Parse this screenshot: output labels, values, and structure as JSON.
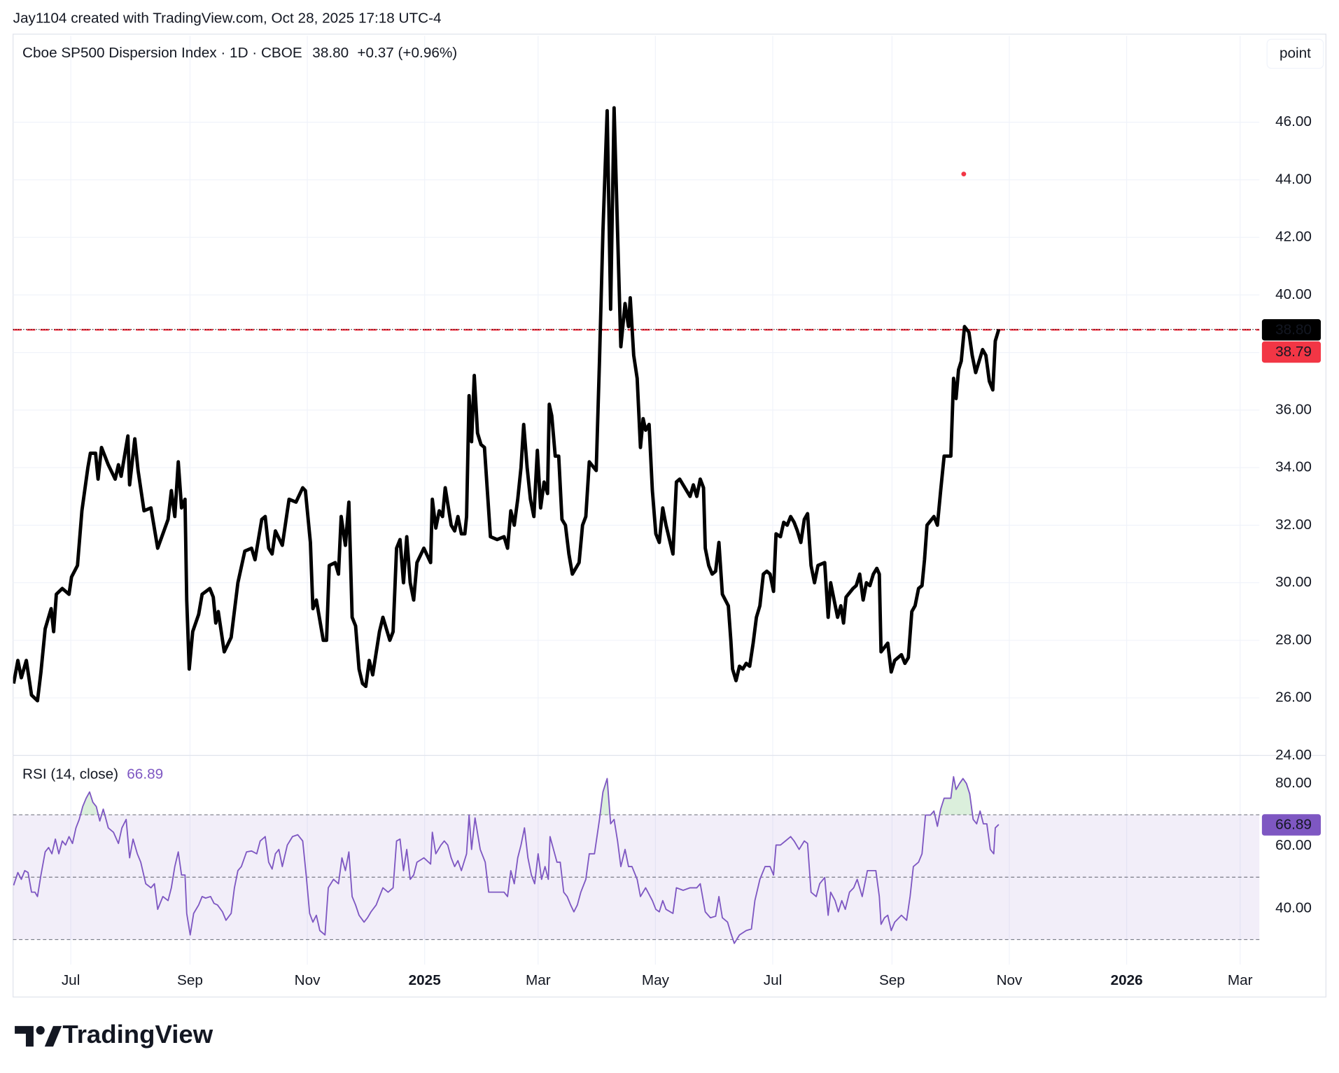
{
  "header": {
    "attribution": "Jay1104 created with TradingView.com, Oct 28, 2025 17:18 UTC-4",
    "logo": "TradingView"
  },
  "chart_data": [
    {
      "type": "line",
      "title": "Cboe SP500 Dispersion Index · 1D · CBOE",
      "change_label": "+0.37 (+0.96%)",
      "scale_button": "point",
      "color": "#000000",
      "last_value": {
        "value": 38.8,
        "label": "38.80"
      },
      "ref_line": {
        "value": 38.79,
        "label": "38.79",
        "color": "#f23645"
      },
      "marker": {
        "x": 464.3,
        "value": 44.2,
        "color": "#f23645"
      },
      "xlim": [
        -30,
        618
      ],
      "xticks": [
        {
          "value": 0,
          "label": "Jul"
        },
        {
          "value": 62,
          "label": "Sep"
        },
        {
          "value": 123,
          "label": "Nov"
        },
        {
          "value": 184,
          "label": "2025"
        },
        {
          "value": 243,
          "label": "Mar"
        },
        {
          "value": 304,
          "label": "May"
        },
        {
          "value": 365,
          "label": "Jul"
        },
        {
          "value": 427,
          "label": "Sep"
        },
        {
          "value": 488,
          "label": "Nov"
        },
        {
          "value": 549,
          "label": "2026"
        },
        {
          "value": 608,
          "label": "Mar"
        }
      ],
      "ylim": [
        24,
        49
      ],
      "yticks": [
        {
          "value": 24,
          "label": "24.00"
        },
        {
          "value": 26,
          "label": "26.00"
        },
        {
          "value": 28,
          "label": "28.00"
        },
        {
          "value": 30,
          "label": "30.00"
        },
        {
          "value": 32,
          "label": "32.00"
        },
        {
          "value": 34,
          "label": "34.00"
        },
        {
          "value": 36,
          "label": "36.00"
        },
        {
          "value": 38,
          "label": "38.00"
        },
        {
          "value": 40,
          "label": "40.00"
        },
        {
          "value": 42,
          "label": "42.00"
        },
        {
          "value": 44,
          "label": "44.00"
        },
        {
          "value": 46,
          "label": "46.00"
        }
      ],
      "grid": true,
      "x": [
        -29.7,
        -27.5,
        -25.7,
        -23.1,
        -20.4,
        -17.3,
        -15.5,
        -13.3,
        -10.2,
        -8.9,
        -7.5,
        -4.4,
        -0.9,
        0.4,
        3.5,
        5.8,
        8.9,
        10.2,
        12.9,
        14.2,
        16.0,
        19.5,
        23.1,
        24.8,
        26.2,
        29.7,
        30.6,
        33.3,
        35.0,
        38.1,
        41.7,
        45.2,
        50.6,
        52.3,
        54.1,
        55.9,
        57.6,
        59.4,
        60.3,
        61.6,
        63.4,
        66.5,
        68.3,
        72.3,
        74.1,
        75.4,
        76.7,
        79.8,
        83.4,
        86.9,
        90.5,
        94.0,
        95.8,
        99.3,
        101.1,
        102.9,
        104.7,
        106.4,
        110.0,
        113.5,
        117.1,
        120.6,
        122.0,
        124.6,
        125.9,
        127.7,
        131.3,
        133.0,
        134.4,
        137.5,
        139.2,
        140.6,
        142.8,
        144.6,
        146.3,
        148.1,
        149.9,
        151.7,
        153.4,
        155.2,
        157.0,
        160.5,
        162.3,
        165.9,
        167.6,
        169.4,
        171.2,
        173.0,
        174.7,
        176.5,
        178.3,
        180.0,
        183.6,
        187.1,
        188.0,
        189.8,
        191.6,
        193.3,
        194.7,
        197.8,
        199.6,
        201.3,
        203.1,
        204.9,
        205.8,
        207.1,
        208.4,
        209.8,
        211.5,
        213.3,
        215.1,
        216.9,
        218.2,
        221.7,
        225.3,
        227.1,
        228.8,
        230.6,
        232.4,
        234.1,
        235.5,
        237.3,
        239.0,
        240.8,
        242.6,
        244.3,
        246.1,
        247.9,
        248.8,
        250.1,
        251.9,
        253.7,
        255.4,
        257.2,
        259.0,
        260.8,
        264.3,
        266.1,
        267.8,
        269.6,
        273.2,
        274.9,
        276.7,
        278.9,
        280.7,
        282.5,
        284.3,
        286.0,
        288.2,
        290.0,
        290.9,
        292.7,
        294.5,
        296.2,
        297.6,
        298.9,
        300.7,
        302.4,
        304.2,
        306.0,
        307.8,
        309.5,
        311.3,
        313.1,
        314.9,
        316.6,
        320.2,
        322.0,
        323.7,
        325.5,
        327.3,
        329.0,
        329.9,
        331.7,
        333.5,
        335.3,
        337.0,
        338.8,
        341.9,
        343.2,
        344.1,
        345.9,
        347.7,
        349.4,
        351.2,
        353.0,
        354.8,
        356.5,
        358.3,
        360.1,
        361.9,
        363.6,
        365.4,
        366.7,
        369.0,
        370.7,
        372.5,
        374.3,
        376.1,
        377.8,
        379.6,
        381.4,
        383.1,
        384.9,
        386.7,
        388.5,
        392.0,
        393.8,
        395.1,
        396.9,
        398.7,
        400.4,
        401.8,
        403.1,
        406.7,
        408.4,
        410.2,
        412.0,
        413.7,
        415.5,
        417.3,
        419.1,
        420.4,
        421.3,
        424.8,
        426.6,
        428.4,
        431.9,
        433.7,
        435.5,
        437.3,
        439.0,
        440.8,
        442.6,
        443.9,
        445.2,
        448.8,
        450.6,
        452.3,
        454.1,
        457.6,
        459.0,
        460.3,
        461.6,
        463.0,
        464.7,
        467.0,
        468.7,
        470.5,
        472.3,
        474.1,
        475.8,
        477.6,
        479.4,
        480.7,
        482.5
      ],
      "values": [
        26.5,
        27.3,
        26.7,
        27.3,
        26.1,
        25.9,
        26.9,
        28.4,
        29.1,
        28.3,
        29.6,
        29.8,
        29.6,
        30.2,
        30.6,
        32.5,
        34.0,
        34.5,
        34.5,
        33.6,
        34.7,
        34.1,
        33.6,
        34.1,
        33.7,
        35.1,
        33.4,
        35.0,
        33.9,
        32.5,
        32.6,
        31.2,
        32.2,
        33.2,
        32.3,
        34.2,
        32.6,
        32.9,
        29.4,
        27.0,
        28.3,
        28.9,
        29.6,
        29.8,
        29.5,
        28.6,
        29.0,
        27.6,
        28.1,
        30.0,
        31.1,
        31.2,
        30.8,
        32.2,
        32.3,
        31.2,
        31.0,
        31.8,
        31.3,
        32.9,
        32.8,
        33.3,
        33.2,
        31.4,
        29.1,
        29.4,
        28.0,
        28.0,
        30.6,
        30.7,
        30.3,
        32.3,
        31.3,
        32.8,
        28.8,
        28.5,
        27.0,
        26.5,
        26.4,
        27.3,
        26.8,
        28.3,
        28.8,
        28.0,
        28.3,
        31.2,
        31.5,
        30.0,
        31.6,
        30.0,
        29.4,
        30.7,
        31.2,
        30.7,
        32.9,
        31.9,
        32.5,
        32.3,
        33.3,
        32.0,
        31.8,
        32.3,
        31.7,
        31.7,
        32.3,
        36.5,
        34.9,
        37.2,
        35.2,
        34.8,
        34.7,
        32.9,
        31.6,
        31.5,
        31.6,
        31.2,
        32.5,
        32.0,
        32.9,
        34.0,
        35.5,
        34.0,
        32.9,
        32.3,
        34.6,
        32.6,
        33.5,
        33.1,
        36.2,
        35.8,
        34.4,
        34.4,
        32.2,
        32.0,
        31.0,
        30.3,
        30.7,
        32.0,
        32.3,
        34.2,
        33.9,
        37.7,
        42.2,
        46.4,
        39.5,
        46.5,
        42.2,
        38.2,
        39.7,
        38.9,
        39.9,
        37.9,
        37.1,
        34.7,
        35.7,
        35.3,
        35.5,
        33.2,
        31.7,
        31.4,
        32.6,
        32.0,
        31.5,
        31.0,
        33.5,
        33.6,
        33.2,
        33.0,
        33.4,
        33.0,
        33.6,
        33.3,
        31.2,
        30.6,
        30.3,
        30.4,
        31.4,
        29.6,
        29.2,
        28.0,
        27.0,
        26.6,
        27.1,
        27.0,
        27.2,
        27.1,
        27.9,
        28.8,
        29.2,
        30.3,
        30.4,
        30.3,
        29.7,
        31.7,
        31.6,
        32.1,
        32.0,
        32.3,
        32.1,
        31.8,
        31.4,
        32.2,
        32.4,
        30.6,
        30.0,
        30.6,
        30.7,
        28.8,
        30.0,
        29.4,
        28.8,
        29.2,
        28.6,
        29.5,
        29.8,
        29.9,
        30.3,
        29.4,
        30.0,
        29.9,
        30.3,
        30.5,
        30.3,
        27.6,
        27.9,
        26.9,
        27.3,
        27.5,
        27.2,
        27.4,
        29.0,
        29.2,
        29.8,
        29.9,
        30.8,
        32.0,
        32.3,
        32.0,
        33.2,
        34.4,
        34.4,
        37.1,
        36.4,
        37.4,
        37.7,
        38.9,
        38.7,
        37.9,
        37.3,
        37.7,
        38.1,
        37.9,
        37.0,
        36.7,
        38.4,
        38.8
      ]
    },
    {
      "type": "line",
      "title": "RSI (14, close)",
      "color": "#7e57c2",
      "last_value": {
        "value": 66.89,
        "label": "66.89"
      },
      "bands": [
        30,
        50,
        70
      ],
      "band_color": "#7e57c2",
      "overbought_color": "#4caf50",
      "ylim": [
        22,
        89
      ],
      "yticks": [
        {
          "value": 40,
          "label": "40.00"
        },
        {
          "value": 60,
          "label": "60.00"
        },
        {
          "value": 80,
          "label": "80.00"
        }
      ],
      "x": [
        -29.7,
        -27.5,
        -25.7,
        -23.9,
        -22.2,
        -20.4,
        -18.6,
        -17.3,
        -15.5,
        -13.3,
        -11.5,
        -9.8,
        -8.0,
        -6.2,
        -4.4,
        -2.7,
        -0.9,
        0.9,
        2.7,
        4.4,
        6.2,
        8.0,
        9.8,
        11.5,
        13.3,
        15.1,
        16.9,
        19.5,
        22.2,
        24.8,
        26.6,
        28.8,
        30.6,
        32.4,
        34.6,
        36.4,
        39.0,
        41.7,
        43.5,
        45.2,
        47.9,
        50.6,
        52.3,
        54.1,
        55.9,
        57.6,
        59.4,
        60.3,
        62.1,
        63.9,
        66.5,
        68.3,
        70.1,
        72.7,
        74.5,
        76.3,
        78.9,
        80.7,
        83.4,
        85.1,
        86.9,
        88.7,
        91.4,
        94.0,
        96.7,
        98.5,
        101.1,
        102.9,
        104.7,
        106.4,
        108.2,
        110.0,
        112.6,
        115.3,
        118.0,
        120.6,
        122.4,
        124.2,
        125.9,
        127.7,
        129.5,
        132.2,
        133.9,
        136.6,
        139.2,
        141.0,
        142.8,
        144.6,
        146.3,
        148.1,
        149.9,
        152.5,
        154.3,
        156.1,
        158.8,
        160.5,
        162.3,
        165.0,
        167.6,
        169.4,
        171.2,
        173.0,
        174.7,
        176.5,
        178.3,
        180.0,
        183.6,
        187.1,
        188.0,
        189.8,
        192.5,
        194.2,
        196.0,
        197.8,
        199.6,
        201.3,
        203.1,
        205.8,
        207.1,
        208.4,
        210.2,
        212.9,
        215.5,
        217.3,
        220.8,
        225.3,
        227.1,
        228.8,
        230.6,
        232.4,
        234.1,
        235.9,
        237.7,
        239.5,
        241.2,
        243.0,
        244.8,
        246.6,
        248.3,
        249.2,
        251.0,
        252.8,
        254.5,
        256.3,
        258.1,
        259.9,
        261.6,
        263.4,
        265.2,
        267.8,
        269.6,
        272.3,
        274.9,
        276.7,
        278.9,
        280.7,
        282.5,
        284.3,
        286.0,
        288.2,
        290.0,
        291.8,
        294.5,
        296.2,
        298.9,
        302.4,
        304.2,
        306.0,
        307.8,
        309.5,
        313.1,
        314.9,
        318.4,
        322.0,
        325.5,
        327.3,
        329.9,
        332.6,
        335.3,
        337.0,
        338.8,
        341.5,
        343.2,
        345.0,
        347.7,
        351.2,
        353.9,
        355.7,
        358.3,
        361.0,
        363.6,
        365.4,
        366.7,
        369.0,
        371.6,
        374.3,
        376.1,
        378.7,
        381.4,
        383.1,
        384.9,
        387.6,
        389.4,
        392.0,
        393.8,
        395.1,
        397.4,
        399.1,
        400.9,
        402.7,
        404.9,
        407.1,
        408.9,
        411.5,
        414.2,
        416.9,
        418.6,
        420.4,
        421.3,
        423.1,
        424.8,
        426.6,
        428.4,
        431.9,
        434.6,
        436.4,
        438.1,
        440.8,
        442.6,
        444.4,
        447.0,
        448.8,
        450.6,
        452.3,
        454.1,
        457.6,
        459.0,
        460.3,
        462.1,
        463.9,
        465.7,
        467.4,
        469.2,
        471.0,
        472.8,
        474.5,
        476.3,
        478.1,
        479.9,
        480.7,
        482.5
      ],
      "values": [
        47.4,
        51.5,
        49.3,
        52.1,
        51.5,
        45.2,
        45.2,
        43.8,
        50.7,
        58.1,
        59.5,
        57.5,
        62.2,
        57.5,
        61.6,
        60.3,
        63.0,
        60.8,
        65.8,
        68.5,
        72.6,
        75.3,
        77.3,
        74.0,
        72.6,
        68.0,
        71.8,
        65.8,
        64.4,
        60.8,
        65.8,
        68.5,
        56.2,
        62.2,
        57.5,
        54.8,
        47.9,
        46.6,
        47.9,
        39.7,
        43.8,
        42.5,
        46.6,
        53.4,
        58.1,
        50.7,
        50.7,
        38.4,
        31.5,
        38.4,
        41.1,
        43.8,
        43.3,
        43.8,
        41.6,
        41.1,
        38.9,
        36.2,
        38.4,
        46.6,
        52.1,
        53.4,
        58.1,
        58.4,
        57.5,
        61.6,
        63.0,
        54.8,
        52.6,
        57.5,
        58.9,
        53.4,
        60.3,
        63.0,
        63.6,
        61.6,
        50.7,
        38.4,
        35.6,
        37.8,
        32.9,
        31.5,
        46.6,
        49.3,
        47.9,
        56.2,
        52.1,
        58.1,
        43.8,
        41.1,
        37.8,
        35.6,
        37.0,
        38.9,
        41.1,
        43.8,
        46.6,
        45.2,
        46.6,
        61.6,
        62.2,
        52.1,
        58.9,
        49.3,
        50.7,
        54.8,
        56.2,
        54.2,
        64.4,
        57.5,
        60.3,
        61.6,
        60.3,
        56.2,
        53.4,
        55.3,
        52.1,
        57.5,
        69.9,
        58.9,
        69.0,
        58.9,
        54.8,
        45.2,
        45.2,
        45.2,
        43.8,
        52.1,
        47.9,
        56.2,
        60.3,
        65.8,
        56.2,
        50.7,
        47.9,
        57.5,
        49.3,
        53.4,
        49.3,
        63.0,
        58.9,
        54.8,
        54.8,
        45.2,
        43.8,
        41.1,
        38.9,
        41.1,
        45.2,
        49.3,
        57.5,
        57.5,
        68.5,
        77.3,
        81.6,
        67.1,
        68.5,
        61.6,
        53.4,
        58.9,
        53.4,
        53.4,
        49.3,
        43.8,
        46.6,
        42.5,
        39.7,
        38.9,
        42.5,
        39.7,
        38.4,
        46.6,
        45.8,
        46.6,
        46.6,
        47.9,
        38.9,
        37.0,
        37.5,
        43.8,
        37.0,
        35.6,
        32.1,
        28.8,
        31.5,
        32.9,
        33.4,
        42.5,
        49.3,
        53.4,
        53.4,
        50.7,
        60.3,
        60.3,
        61.6,
        63.0,
        61.6,
        58.9,
        61.6,
        60.8,
        45.2,
        43.8,
        47.9,
        49.9,
        37.8,
        45.2,
        42.5,
        38.9,
        42.5,
        39.7,
        45.2,
        46.6,
        49.3,
        43.8,
        52.1,
        52.1,
        52.1,
        43.8,
        34.9,
        37.0,
        37.8,
        32.9,
        35.6,
        37.8,
        36.2,
        43.8,
        53.4,
        54.8,
        57.5,
        69.9,
        69.9,
        71.2,
        66.3,
        71.8,
        75.3,
        75.3,
        82.2,
        78.1,
        80.0,
        81.6,
        80.0,
        76.7,
        68.5,
        67.1,
        71.2,
        67.1,
        67.1,
        58.9,
        57.5,
        65.8,
        66.89
      ]
    }
  ]
}
